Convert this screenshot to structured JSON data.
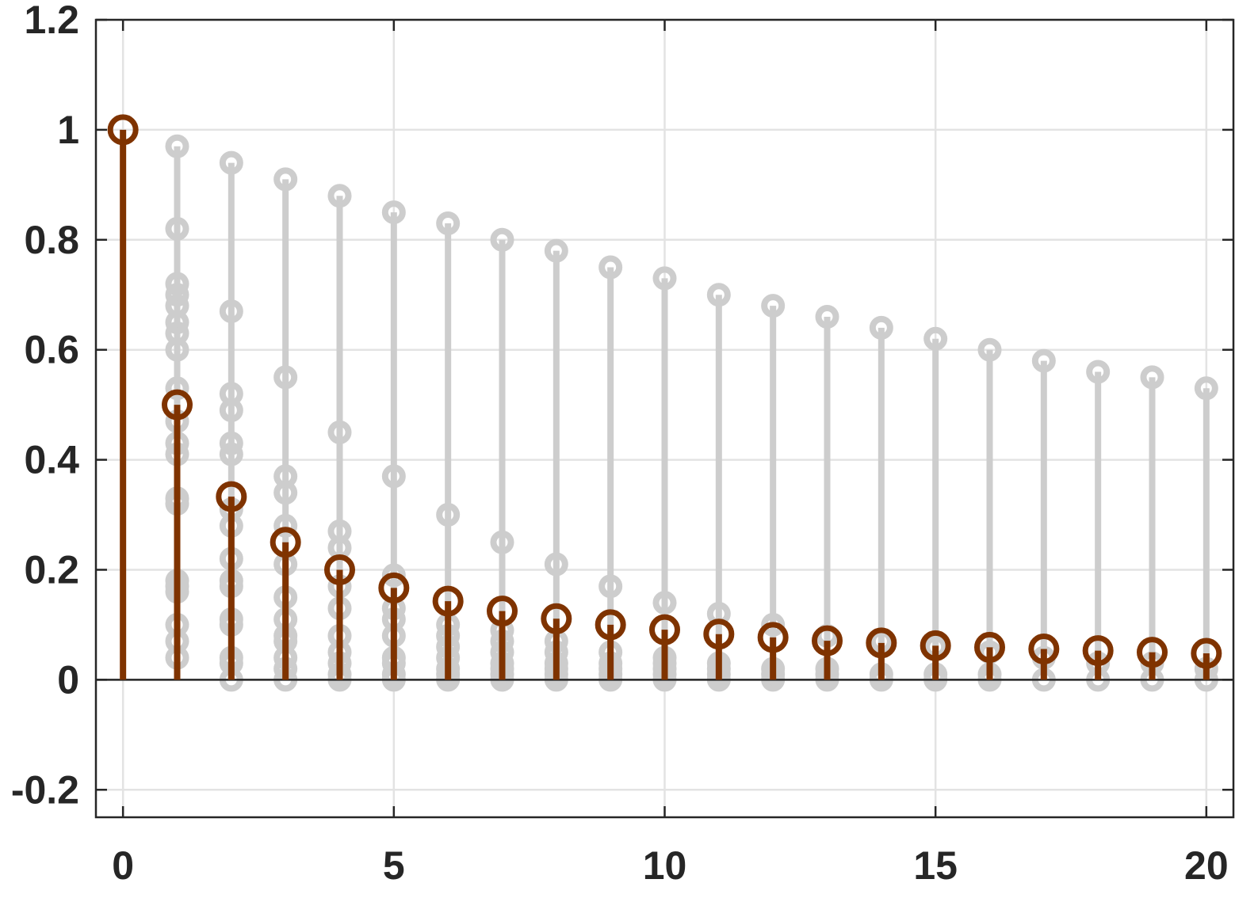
{
  "chart_data": {
    "type": "stem",
    "xlim": [
      -0.5,
      20.5
    ],
    "ylim": [
      -0.25,
      1.2
    ],
    "x_ticks": [
      "0",
      "5",
      "10",
      "15",
      "20"
    ],
    "y_ticks": [
      "-0.2",
      "0",
      "0.2",
      "0.4",
      "0.6",
      "0.8",
      "1",
      "1.2"
    ],
    "grid": true,
    "baseline": 0,
    "colors": {
      "highlight": "#7f3300",
      "background": "#cdcdcd",
      "axes": "#262626",
      "grid": "#e3e3e3"
    },
    "highlight_series": {
      "x": [
        0,
        1,
        2,
        3,
        4,
        5,
        6,
        7,
        8,
        9,
        10,
        11,
        12,
        13,
        14,
        15,
        16,
        17,
        18,
        19,
        20
      ],
      "y": [
        1,
        0.5,
        0.333,
        0.25,
        0.2,
        0.167,
        0.143,
        0.125,
        0.111,
        0.1,
        0.091,
        0.083,
        0.077,
        0.071,
        0.067,
        0.062,
        0.059,
        0.056,
        0.053,
        0.05,
        0.048
      ]
    },
    "background_series": [
      {
        "x": 1,
        "y": [
          0.97,
          0.82,
          0.72,
          0.7,
          0.68,
          0.65,
          0.63,
          0.6,
          0.53,
          0.47,
          0.43,
          0.41,
          0.33,
          0.32,
          0.18,
          0.17,
          0.16,
          0.1,
          0.07,
          0.04
        ]
      },
      {
        "x": 2,
        "y": [
          0.94,
          0.67,
          0.52,
          0.49,
          0.43,
          0.41,
          0.31,
          0.28,
          0.22,
          0.18,
          0.17,
          0.11,
          0.1,
          0.04,
          0.03,
          0.0
        ]
      },
      {
        "x": 3,
        "y": [
          0.91,
          0.55,
          0.37,
          0.34,
          0.28,
          0.21,
          0.15,
          0.11,
          0.08,
          0.07,
          0.04,
          0.02,
          0.0
        ]
      },
      {
        "x": 4,
        "y": [
          0.88,
          0.45,
          0.27,
          0.24,
          0.17,
          0.13,
          0.08,
          0.05,
          0.03,
          0.01,
          0.0
        ]
      },
      {
        "x": 5,
        "y": [
          0.85,
          0.37,
          0.19,
          0.13,
          0.11,
          0.08,
          0.04,
          0.03,
          0.01,
          0.0
        ]
      },
      {
        "x": 6,
        "y": [
          0.83,
          0.3,
          0.1,
          0.08,
          0.06,
          0.04,
          0.02,
          0.01,
          0.0
        ]
      },
      {
        "x": 7,
        "y": [
          0.8,
          0.25,
          0.09,
          0.07,
          0.05,
          0.03,
          0.02,
          0.01,
          0.0
        ]
      },
      {
        "x": 8,
        "y": [
          0.78,
          0.21,
          0.07,
          0.05,
          0.03,
          0.02,
          0.01,
          0.0
        ]
      },
      {
        "x": 9,
        "y": [
          0.75,
          0.17,
          0.05,
          0.03,
          0.02,
          0.01,
          0.0
        ]
      },
      {
        "x": 10,
        "y": [
          0.73,
          0.14,
          0.04,
          0.03,
          0.02,
          0.01,
          0.0
        ]
      },
      {
        "x": 11,
        "y": [
          0.7,
          0.12,
          0.03,
          0.02,
          0.01,
          0.0
        ]
      },
      {
        "x": 12,
        "y": [
          0.68,
          0.1,
          0.02,
          0.01,
          0.0
        ]
      },
      {
        "x": 13,
        "y": [
          0.66,
          0.08,
          0.02,
          0.01,
          0.0
        ]
      },
      {
        "x": 14,
        "y": [
          0.64,
          0.07,
          0.01,
          0.0
        ]
      },
      {
        "x": 15,
        "y": [
          0.62,
          0.06,
          0.01,
          0.0
        ]
      },
      {
        "x": 16,
        "y": [
          0.6,
          0.05,
          0.01,
          0.0
        ]
      },
      {
        "x": 17,
        "y": [
          0.58,
          0.04,
          0.0
        ]
      },
      {
        "x": 18,
        "y": [
          0.56,
          0.03,
          0.0
        ]
      },
      {
        "x": 19,
        "y": [
          0.55,
          0.03,
          0.0
        ]
      },
      {
        "x": 20,
        "y": [
          0.53,
          0.02,
          0.0
        ]
      }
    ]
  }
}
